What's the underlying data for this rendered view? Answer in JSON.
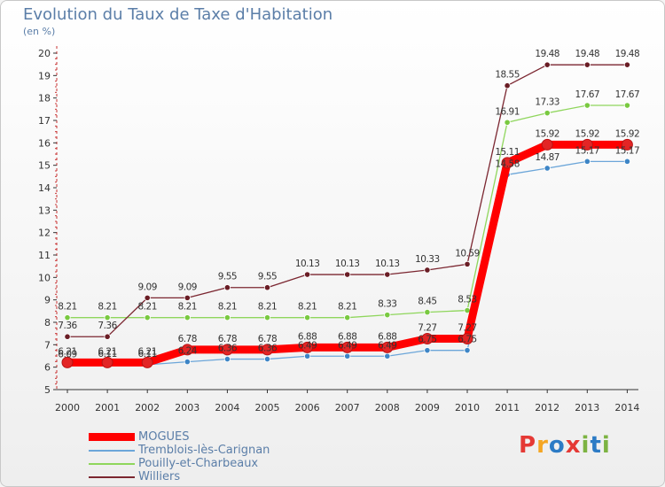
{
  "title": "Evolution du Taux de Taxe d'Habitation",
  "subtitle": "(en %)",
  "logo": {
    "text": "Proxiti",
    "colors": [
      "#e53935",
      "#f5a623",
      "#2c7bc5",
      "#e53935",
      "#7cb342",
      "#2c7bc5",
      "#7cb342"
    ]
  },
  "chart_data": {
    "type": "line",
    "x": [
      "2000",
      "2001",
      "2002",
      "2003",
      "2004",
      "2005",
      "2006",
      "2007",
      "2008",
      "2009",
      "2010",
      "2011",
      "2012",
      "2013",
      "2014"
    ],
    "ylim": [
      5,
      20
    ],
    "yticks": [
      "5",
      "6",
      "7",
      "8",
      "9",
      "10",
      "11",
      "12",
      "13",
      "14",
      "15",
      "16",
      "17",
      "18",
      "19",
      "20"
    ],
    "grid": false,
    "series": [
      {
        "name": "MOGUES",
        "color": "#ff0000",
        "point_color": "#e32525",
        "values": [
          6.21,
          6.21,
          6.21,
          6.78,
          6.78,
          6.78,
          6.88,
          6.88,
          6.88,
          7.27,
          7.27,
          15.11,
          15.92,
          15.92,
          15.92
        ],
        "labels": [
          "6.21",
          "6.21",
          "6.21",
          "6.78",
          "6.78",
          "6.78",
          "6.88",
          "6.88",
          "6.88",
          "7.27",
          "7.27",
          "15.11",
          "15.92",
          "15.92",
          "15.92"
        ]
      },
      {
        "name": "Tremblois-lès-Carignan",
        "color": "#6ca6d9",
        "point_color": "#3d85c6",
        "values": [
          6.09,
          6.11,
          6.11,
          6.24,
          6.36,
          6.36,
          6.49,
          6.49,
          6.49,
          6.75,
          6.75,
          14.58,
          14.87,
          15.17,
          15.17
        ],
        "labels": [
          "6.09",
          "6.11",
          "6.11",
          "6.24",
          "6.36",
          "6.36",
          "6.49",
          "6.49",
          "6.49",
          "6.75",
          "6.75",
          "14.58",
          "14.87",
          "15.17",
          "15.17"
        ]
      },
      {
        "name": "Pouilly-et-Charbeaux",
        "color": "#8fd65c",
        "point_color": "#79c940",
        "values": [
          8.21,
          8.21,
          8.21,
          8.21,
          8.21,
          8.21,
          8.21,
          8.21,
          8.33,
          8.45,
          8.53,
          16.91,
          17.33,
          17.67,
          17.67
        ],
        "labels": [
          "8.21",
          "8.21",
          "8.21",
          "8.21",
          "8.21",
          "8.21",
          "8.21",
          "8.21",
          "8.33",
          "8.45",
          "8.53",
          "16.91",
          "17.33",
          "17.67",
          "17.67"
        ]
      },
      {
        "name": "Williers",
        "color": "#7b2630",
        "point_color": "#6a1d25",
        "values": [
          7.36,
          7.36,
          9.09,
          9.09,
          9.55,
          9.55,
          10.13,
          10.13,
          10.13,
          10.33,
          10.59,
          18.55,
          19.48,
          19.48,
          19.48
        ],
        "labels": [
          "7.36",
          "7.36",
          "9.09",
          "9.09",
          "9.55",
          "9.55",
          "10.13",
          "10.13",
          "10.13",
          "10.33",
          "10.59",
          "18.55",
          "19.48",
          "19.48",
          "19.48"
        ]
      }
    ],
    "legend_position": "bottom-left"
  }
}
